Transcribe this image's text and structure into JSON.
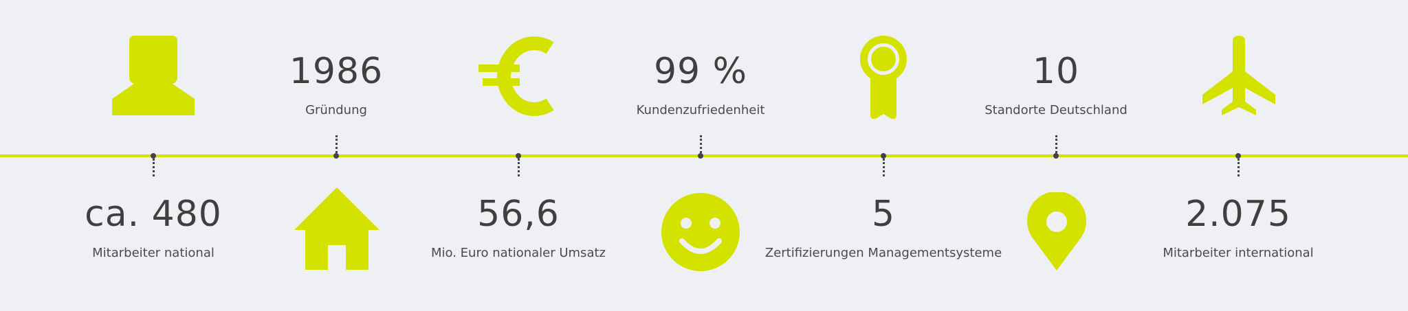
{
  "colors": {
    "accent": "#d4e200",
    "text": "#3f3f3f",
    "background": "#eef0f4"
  },
  "stats": [
    {
      "value": "ca. 480",
      "label": "Mitarbeiter national",
      "icon": "person-icon"
    },
    {
      "value": "1986",
      "label": "Gründung",
      "icon": "house-icon"
    },
    {
      "value": "56,6",
      "label": "Mio. Euro nationaler Umsatz",
      "icon": "euro-icon"
    },
    {
      "value": "99 %",
      "label": "Kundenzufriedenheit",
      "icon": "smiley-icon"
    },
    {
      "value": "5",
      "label": "Zertifizierungen Managementsysteme",
      "icon": "award-ribbon-icon"
    },
    {
      "value": "10",
      "label": "Standorte Deutschland",
      "icon": "location-pin-icon"
    },
    {
      "value": "2.075",
      "label": "Mitarbeiter international",
      "icon": "airplane-icon"
    }
  ]
}
